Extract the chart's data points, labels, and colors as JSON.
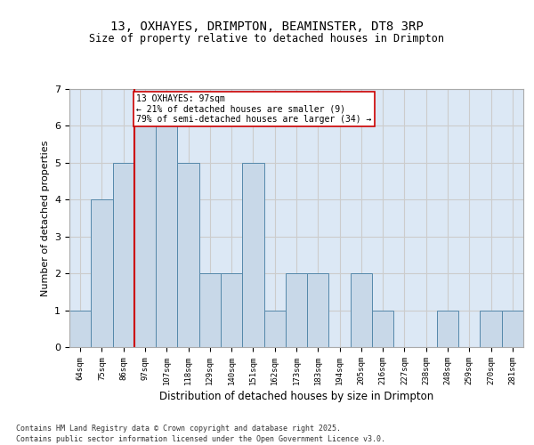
{
  "title1": "13, OXHAYES, DRIMPTON, BEAMINSTER, DT8 3RP",
  "title2": "Size of property relative to detached houses in Drimpton",
  "xlabel": "Distribution of detached houses by size in Drimpton",
  "ylabel": "Number of detached properties",
  "categories": [
    "64sqm",
    "75sqm",
    "86sqm",
    "97sqm",
    "107sqm",
    "118sqm",
    "129sqm",
    "140sqm",
    "151sqm",
    "162sqm",
    "173sqm",
    "183sqm",
    "194sqm",
    "205sqm",
    "216sqm",
    "227sqm",
    "238sqm",
    "248sqm",
    "259sqm",
    "270sqm",
    "281sqm"
  ],
  "values": [
    1,
    4,
    5,
    6,
    6,
    5,
    2,
    2,
    5,
    1,
    2,
    2,
    0,
    2,
    1,
    0,
    0,
    1,
    0,
    1,
    1
  ],
  "bar_color": "#c8d8e8",
  "bar_edge_color": "#5588aa",
  "subject_line_idx": 3,
  "annotation_line1": "13 OXHAYES: 97sqm",
  "annotation_line2": "← 21% of detached houses are smaller (9)",
  "annotation_line3": "79% of semi-detached houses are larger (34) →",
  "annotation_box_color": "#ffffff",
  "annotation_box_edge_color": "#cc0000",
  "subject_line_color": "#cc0000",
  "grid_color": "#cccccc",
  "bg_color": "#dce8f5",
  "ylim": [
    0,
    7
  ],
  "yticks": [
    0,
    1,
    2,
    3,
    4,
    5,
    6,
    7
  ],
  "footnote1": "Contains HM Land Registry data © Crown copyright and database right 2025.",
  "footnote2": "Contains public sector information licensed under the Open Government Licence v3.0."
}
